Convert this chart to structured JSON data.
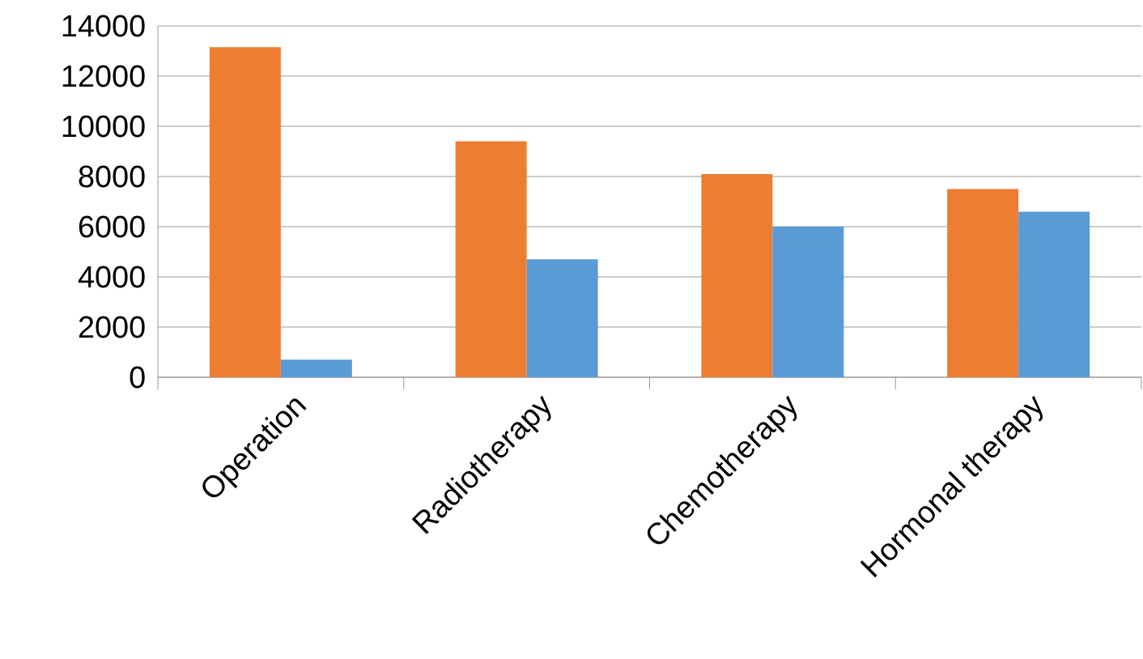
{
  "chart_data": {
    "type": "bar",
    "categories": [
      "Operation",
      "Radiotherapy",
      "Chemotherapy",
      "Hormonal therapy"
    ],
    "series": [
      {
        "color": "#ed7d31",
        "values": [
          13150,
          9400,
          8100,
          7500
        ]
      },
      {
        "color": "#5b9bd5",
        "values": [
          700,
          4700,
          6000,
          6600
        ]
      }
    ],
    "ylim": [
      0,
      14000
    ],
    "yticks": [
      0,
      2000,
      4000,
      6000,
      8000,
      10000,
      12000,
      14000
    ],
    "grid": "y"
  }
}
